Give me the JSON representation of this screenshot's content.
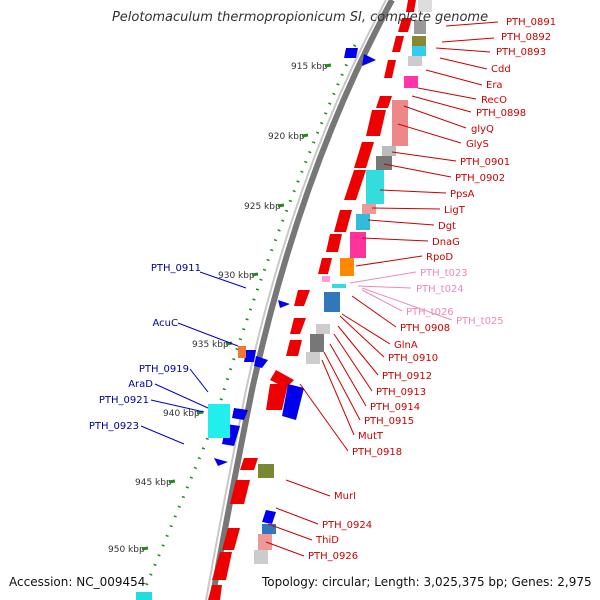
{
  "title": "Pelotomaculum thermopropionicum SI, complete genome",
  "footer": {
    "accession": "Accession: NC_009454",
    "summary": "Topology: circular; Length: 3,025,375 bp; Genes: 2,975"
  },
  "colors": {
    "gene_forward": "#ee0000",
    "gene_reverse": "#0000ee",
    "label_red": "#cc0000",
    "label_pink": "#ee88bb",
    "label_blue": "#000099",
    "tick": "#228822",
    "backbone": "#888888"
  },
  "kbp_marks": [
    {
      "label": "915 kbp"
    },
    {
      "label": "920 kbp"
    },
    {
      "label": "925 kbp"
    },
    {
      "label": "930 kbp"
    },
    {
      "label": "935 kbp"
    },
    {
      "label": "940 kbp"
    },
    {
      "label": "945 kbp"
    },
    {
      "label": "950 kbp"
    }
  ],
  "right_labels": [
    {
      "text": "PTH_0891",
      "style": "red"
    },
    {
      "text": "PTH_0892",
      "style": "red"
    },
    {
      "text": "PTH_0893",
      "style": "red"
    },
    {
      "text": "Cdd",
      "style": "red"
    },
    {
      "text": "Era",
      "style": "red"
    },
    {
      "text": "RecO",
      "style": "red"
    },
    {
      "text": "PTH_0898",
      "style": "red"
    },
    {
      "text": "glyQ",
      "style": "red"
    },
    {
      "text": "GlyS",
      "style": "red"
    },
    {
      "text": "PTH_0901",
      "style": "red"
    },
    {
      "text": "PTH_0902",
      "style": "red"
    },
    {
      "text": "PpsA",
      "style": "red"
    },
    {
      "text": "LigT",
      "style": "red"
    },
    {
      "text": "Dgt",
      "style": "red"
    },
    {
      "text": "DnaG",
      "style": "red"
    },
    {
      "text": "RpoD",
      "style": "red"
    },
    {
      "text": "PTH_t023",
      "style": "pink"
    },
    {
      "text": "PTH_t024",
      "style": "pink"
    },
    {
      "text": "PTH_t026",
      "style": "pink"
    },
    {
      "text": "PTH_t025",
      "style": "pink"
    },
    {
      "text": "PTH_0908",
      "style": "red"
    },
    {
      "text": "GlnA",
      "style": "red"
    },
    {
      "text": "PTH_0910",
      "style": "red"
    },
    {
      "text": "PTH_0912",
      "style": "red"
    },
    {
      "text": "PTH_0913",
      "style": "red"
    },
    {
      "text": "PTH_0914",
      "style": "red"
    },
    {
      "text": "PTH_0915",
      "style": "red"
    },
    {
      "text": "MutT",
      "style": "red"
    },
    {
      "text": "PTH_0918",
      "style": "red"
    },
    {
      "text": "MurI",
      "style": "red"
    },
    {
      "text": "PTH_0924",
      "style": "red"
    },
    {
      "text": "ThiD",
      "style": "red"
    },
    {
      "text": "PTH_0926",
      "style": "red"
    }
  ],
  "left_labels": [
    {
      "text": "PTH_0911"
    },
    {
      "text": "AcuC"
    },
    {
      "text": "PTH_0919"
    },
    {
      "text": "AraD"
    },
    {
      "text": "PTH_0921"
    },
    {
      "text": "PTH_0923"
    }
  ]
}
